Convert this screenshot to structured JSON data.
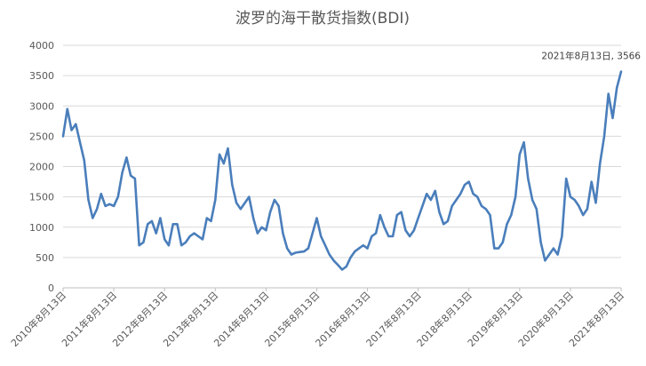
{
  "chart_data": {
    "type": "line",
    "title": "波罗的海干散货指数(BDI)",
    "xlabel": "",
    "ylabel": "",
    "ylim": [
      0,
      4000
    ],
    "yticks": [
      0,
      500,
      1000,
      1500,
      2000,
      2500,
      3000,
      3500,
      4000
    ],
    "grid": true,
    "legend": "none",
    "line_color": "#4a7ebb",
    "xtick_labels": [
      "2010年8月13日",
      "2011年8月13日",
      "2012年8月13日",
      "2013年8月13日",
      "2014年8月13日",
      "2015年8月13日",
      "2016年8月13日",
      "2017年8月13日",
      "2018年8月13日",
      "2019年8月13日",
      "2020年8月13日",
      "2021年8月13日"
    ],
    "annotation": {
      "text": "2021年8月13日, 3566",
      "x": "2021-08-13",
      "y": 3566
    },
    "series": [
      {
        "x": [
          "2010-08",
          "2010-09",
          "2010-10",
          "2010-11",
          "2010-12",
          "2011-01",
          "2011-02",
          "2011-03",
          "2011-04",
          "2011-05",
          "2011-06",
          "2011-07",
          "2011-08",
          "2011-09",
          "2011-10",
          "2011-11",
          "2011-12",
          "2012-01",
          "2012-02",
          "2012-03",
          "2012-04",
          "2012-05",
          "2012-06",
          "2012-07",
          "2012-08",
          "2012-09",
          "2012-10",
          "2012-11",
          "2012-12",
          "2013-01",
          "2013-02",
          "2013-03",
          "2013-04",
          "2013-05",
          "2013-06",
          "2013-07",
          "2013-08",
          "2013-09",
          "2013-10",
          "2013-11",
          "2013-12",
          "2014-01",
          "2014-02",
          "2014-03",
          "2014-04",
          "2014-05",
          "2014-06",
          "2014-07",
          "2014-08",
          "2014-09",
          "2014-10",
          "2014-11",
          "2014-12",
          "2015-01",
          "2015-02",
          "2015-03",
          "2015-04",
          "2015-05",
          "2015-06",
          "2015-07",
          "2015-08",
          "2015-09",
          "2015-10",
          "2015-11",
          "2015-12",
          "2016-01",
          "2016-02",
          "2016-03",
          "2016-04",
          "2016-05",
          "2016-06",
          "2016-07",
          "2016-08",
          "2016-09",
          "2016-10",
          "2016-11",
          "2016-12",
          "2017-01",
          "2017-02",
          "2017-03",
          "2017-04",
          "2017-05",
          "2017-06",
          "2017-07",
          "2017-08",
          "2017-09",
          "2017-10",
          "2017-11",
          "2017-12",
          "2018-01",
          "2018-02",
          "2018-03",
          "2018-04",
          "2018-05",
          "2018-06",
          "2018-07",
          "2018-08",
          "2018-09",
          "2018-10",
          "2018-11",
          "2018-12",
          "2019-01",
          "2019-02",
          "2019-03",
          "2019-04",
          "2019-05",
          "2019-06",
          "2019-07",
          "2019-08",
          "2019-09",
          "2019-10",
          "2019-11",
          "2019-12",
          "2020-01",
          "2020-02",
          "2020-03",
          "2020-04",
          "2020-05",
          "2020-06",
          "2020-07",
          "2020-08",
          "2020-09",
          "2020-10",
          "2020-11",
          "2020-12",
          "2021-01",
          "2021-02",
          "2021-03",
          "2021-04",
          "2021-05",
          "2021-06",
          "2021-07",
          "2021-08"
        ],
        "values": [
          2500,
          2950,
          2600,
          2700,
          2400,
          2100,
          1450,
          1150,
          1300,
          1550,
          1350,
          1380,
          1350,
          1500,
          1900,
          2150,
          1850,
          1800,
          700,
          750,
          1050,
          1100,
          900,
          1150,
          800,
          700,
          1050,
          1050,
          700,
          750,
          850,
          900,
          850,
          800,
          1150,
          1100,
          1450,
          2200,
          2050,
          2300,
          1700,
          1400,
          1300,
          1400,
          1500,
          1150,
          900,
          1000,
          950,
          1250,
          1450,
          1350,
          900,
          650,
          550,
          580,
          590,
          600,
          650,
          900,
          1150,
          850,
          700,
          550,
          450,
          380,
          300,
          350,
          500,
          600,
          650,
          700,
          650,
          850,
          900,
          1200,
          1000,
          850,
          850,
          1200,
          1250,
          950,
          850,
          950,
          1150,
          1350,
          1550,
          1450,
          1600,
          1250,
          1050,
          1100,
          1350,
          1450,
          1550,
          1700,
          1750,
          1550,
          1500,
          1350,
          1300,
          1200,
          650,
          650,
          750,
          1050,
          1200,
          1500,
          2200,
          2400,
          1800,
          1450,
          1300,
          750,
          450,
          550,
          650,
          550,
          850,
          1800,
          1500,
          1450,
          1350,
          1200,
          1300,
          1750,
          1400,
          2050,
          2500,
          3200,
          2800,
          3300,
          3566
        ]
      }
    ]
  }
}
